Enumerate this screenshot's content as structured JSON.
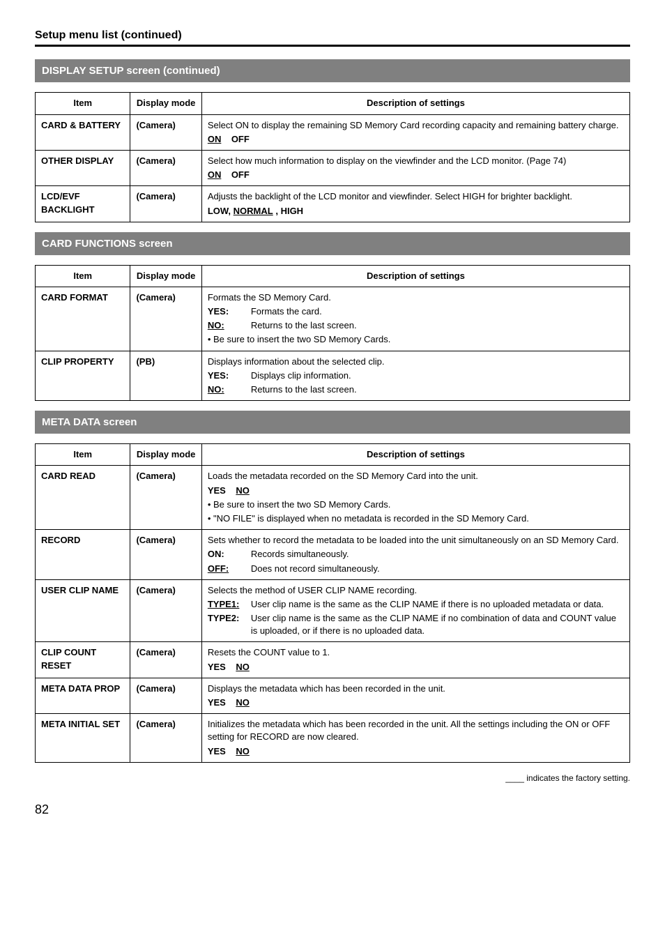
{
  "page": {
    "title": "Setup menu list (continued)",
    "footer_note": "____ indicates the factory setting.",
    "page_number": "82"
  },
  "headers": {
    "item": "Item",
    "mode": "Display mode",
    "desc": "Description of settings"
  },
  "sections": {
    "display": {
      "banner": "DISPLAY SETUP screen (continued)",
      "rows": {
        "card_battery": {
          "item": "CARD & BATTERY",
          "mode": "(Camera)",
          "desc": "Select ON to display the remaining SD Memory Card recording capacity and remaining battery charge.",
          "opt_on": "ON",
          "opt_off": "OFF"
        },
        "other_display": {
          "item": "OTHER DISPLAY",
          "mode": "(Camera)",
          "desc": "Select how much information to display on the viewfinder and the LCD monitor. (Page 74)",
          "opt_on": "ON",
          "opt_off": "OFF"
        },
        "lcd_evf": {
          "item": "LCD/EVF BACKLIGHT",
          "mode": "(Camera)",
          "desc": "Adjusts the backlight of the LCD monitor and viewfinder. Select HIGH for brighter backlight.",
          "opt_low": "LOW,",
          "opt_normal": "NORMAL",
          "opt_high": ", HIGH"
        }
      }
    },
    "card_functions": {
      "banner": "CARD FUNCTIONS screen",
      "rows": {
        "card_format": {
          "item": "CARD FORMAT",
          "mode": "(Camera)",
          "desc": "Formats the SD Memory Card.",
          "yes_key": "YES:",
          "yes_val": "Formats the card.",
          "no_key": "NO:",
          "no_val": "Returns to the last screen.",
          "bullet": "• Be sure to insert the two SD Memory Cards."
        },
        "clip_property": {
          "item": "CLIP PROPERTY",
          "mode": "(PB)",
          "desc": "Displays information about the selected clip.",
          "yes_key": "YES:",
          "yes_val": "Displays clip information.",
          "no_key": "NO:",
          "no_val": "Returns to the last screen."
        }
      }
    },
    "meta": {
      "banner": "META DATA screen",
      "rows": {
        "card_read": {
          "item": "CARD READ",
          "mode": "(Camera)",
          "desc": "Loads the metadata recorded on the SD Memory Card into the unit.",
          "yes": "YES",
          "no": "NO",
          "bullet1": "• Be sure to insert the two SD Memory Cards.",
          "bullet2": "• \"NO FILE\" is displayed when no metadata is recorded in the SD Memory Card."
        },
        "record": {
          "item": "RECORD",
          "mode": "(Camera)",
          "desc": "Sets whether to record the metadata to be loaded into the unit simultaneously on an SD Memory Card.",
          "on_key": "ON:",
          "on_val": "Records simultaneously.",
          "off_key": "OFF:",
          "off_val": "Does not record simultaneously."
        },
        "user_clip": {
          "item": "USER CLIP NAME",
          "mode": "(Camera)",
          "desc": "Selects the method of USER CLIP NAME recording.",
          "t1_key": "TYPE1:",
          "t1_val": "User clip name is the same as the CLIP NAME if there is no uploaded metadata or data.",
          "t2_key": "TYPE2:",
          "t2_val": "User clip name is the same as the CLIP NAME if no combination of data and COUNT value is uploaded, or if there is no uploaded data."
        },
        "clip_count_reset": {
          "item": "CLIP COUNT RESET",
          "mode": "(Camera)",
          "desc": "Resets the COUNT value to 1.",
          "yes": "YES",
          "no": "NO"
        },
        "meta_data_prop": {
          "item": "META DATA PROP",
          "mode": "(Camera)",
          "desc": "Displays the metadata which has been recorded in the unit.",
          "yes": "YES",
          "no": "NO"
        },
        "meta_initial_set": {
          "item": "META INITIAL SET",
          "mode": "(Camera)",
          "desc": "Initializes the metadata which has been recorded in the unit. All the settings including the ON or OFF setting for RECORD are now cleared.",
          "yes": "YES",
          "no": "NO"
        }
      }
    }
  }
}
